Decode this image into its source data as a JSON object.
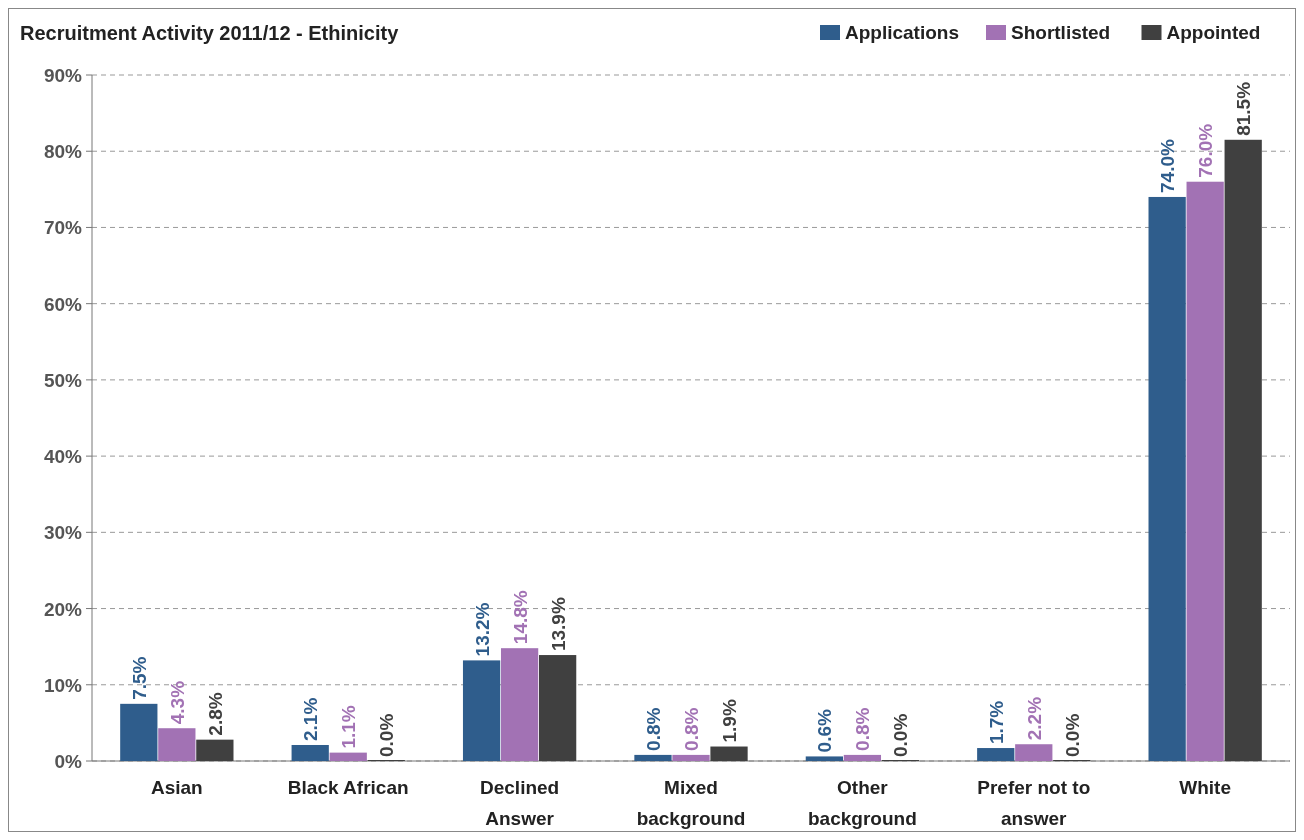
{
  "chart_data": {
    "type": "bar",
    "title": "Recruitment Activity 2011/12 - Ethinicity",
    "categories": [
      "Asian",
      "Black African",
      "Declined Answer",
      "Mixed background",
      "Other background",
      "Prefer not to answer",
      "White"
    ],
    "series": [
      {
        "name": "Applications",
        "color": "#2f5d8c",
        "values": [
          7.5,
          2.1,
          13.2,
          0.8,
          0.6,
          1.7,
          74.0
        ],
        "value_labels": [
          "7.5%",
          "2.1%",
          "13.2%",
          "0.8%",
          "0.6%",
          "1.7%",
          "74.0%"
        ]
      },
      {
        "name": "Shortlisted",
        "color": "#a272b4",
        "values": [
          4.3,
          1.1,
          14.8,
          0.8,
          0.8,
          2.2,
          76.0
        ],
        "value_labels": [
          "4.3%",
          "1.1%",
          "14.8%",
          "0.8%",
          "0.8%",
          "2.2%",
          "76.0%"
        ]
      },
      {
        "name": "Appointed",
        "color": "#404040",
        "values": [
          2.8,
          0.0,
          13.9,
          1.9,
          0.0,
          0.0,
          81.5
        ],
        "value_labels": [
          "2.8%",
          "0.0%",
          "13.9%",
          "1.9%",
          "0.0%",
          "0.0%",
          "81.5%"
        ]
      }
    ],
    "ylim": [
      0,
      90
    ],
    "yticks": [
      {
        "value": 0,
        "label": "0%"
      },
      {
        "value": 10,
        "label": "10%"
      },
      {
        "value": 20,
        "label": "20%"
      },
      {
        "value": 30,
        "label": "30%"
      },
      {
        "value": 40,
        "label": "40%"
      },
      {
        "value": 50,
        "label": "50%"
      },
      {
        "value": 60,
        "label": "60%"
      },
      {
        "value": 70,
        "label": "70%"
      },
      {
        "value": 80,
        "label": "80%"
      },
      {
        "value": 90,
        "label": "90%"
      }
    ],
    "grid": "y",
    "legend": "top right"
  }
}
